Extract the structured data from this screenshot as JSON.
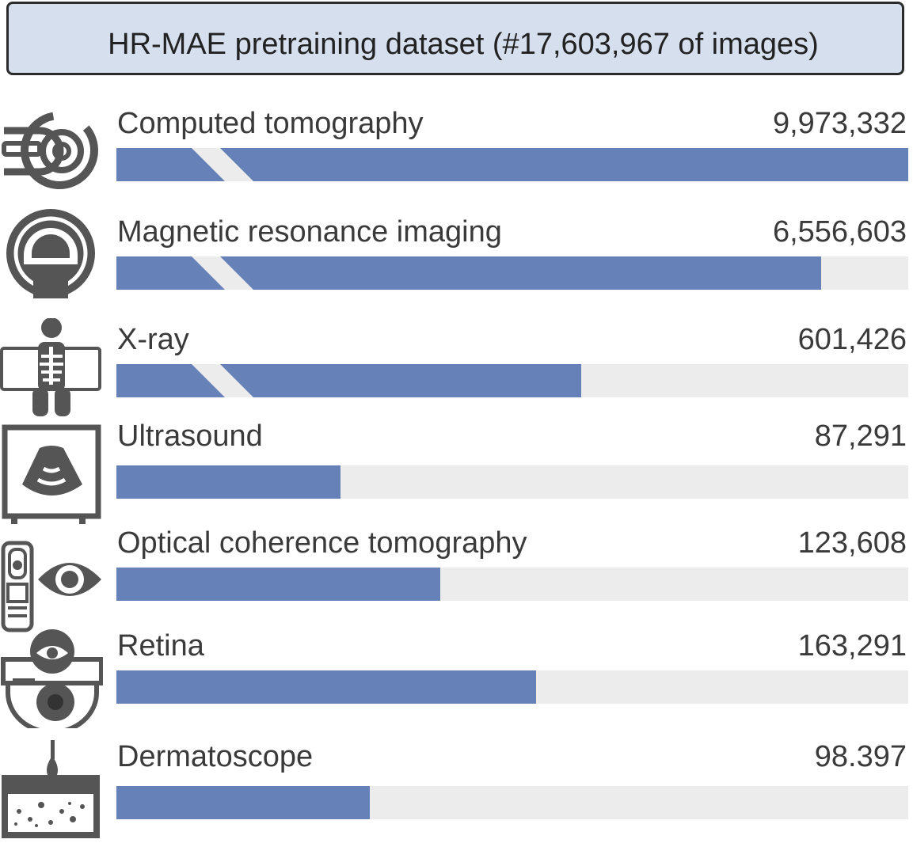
{
  "title": "HR-MAE pretraining dataset (#17,603,967 of images)",
  "colors": {
    "bar": "#6680b8",
    "track": "#ececec",
    "title_bg": "#d6dfee",
    "icon": "#555555"
  },
  "chart_data": {
    "type": "bar",
    "orientation": "horizontal",
    "title": "HR-MAE pretraining dataset (#17,603,967 of images)",
    "categories": [
      "Computed tomography",
      "Magnetic resonance imaging",
      "X-ray",
      "Ultrasound",
      "Optical coherence tomography",
      "Retina",
      "Dermatoscope"
    ],
    "value_labels": [
      "9,973,332",
      "6,556,603",
      "601,426",
      "87,291",
      "123,608",
      "163,291",
      "98.397"
    ],
    "values": [
      9973332,
      6556603,
      601426,
      87291,
      123608,
      163291,
      98397
    ],
    "bar_fraction": [
      1.0,
      0.89,
      0.587,
      0.283,
      0.409,
      0.53,
      0.32
    ],
    "axis_break": [
      true,
      true,
      true,
      false,
      false,
      false,
      false
    ],
    "icons": [
      "ct-scanner-icon",
      "mri-scanner-icon",
      "xray-icon",
      "ultrasound-icon",
      "oct-eye-icon",
      "retina-camera-icon",
      "dermatoscope-skin-icon"
    ]
  }
}
